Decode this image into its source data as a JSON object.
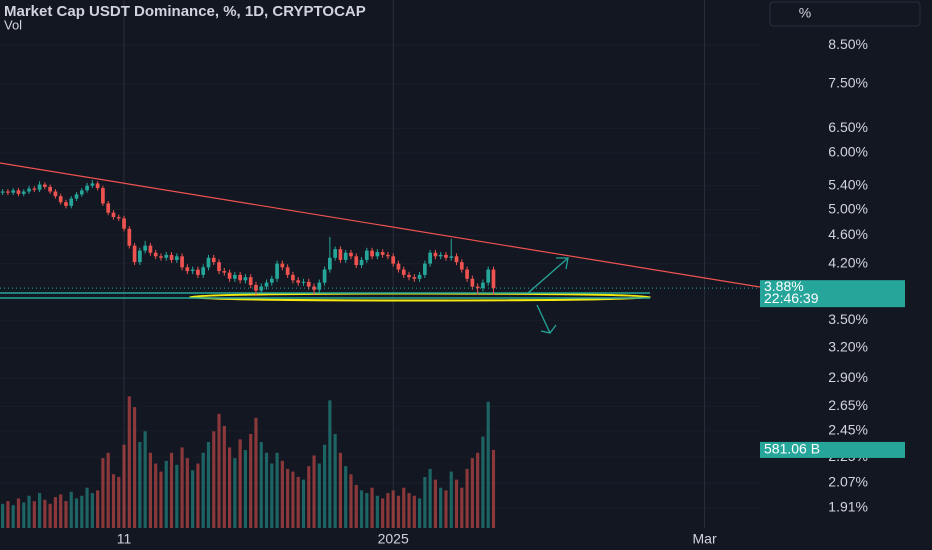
{
  "chart_data": {
    "type": "candlestick",
    "title": "Market Cap USDT Dominance, %, 1D, CRYPTOCAP",
    "volume_title": "Vol",
    "scale_button": "%",
    "log_scale": true,
    "grid": true,
    "up_color": "#26a69a",
    "down_color": "#ef5350",
    "xlim": [
      -0.5,
      143.5
    ],
    "xticks": [
      {
        "value": 23,
        "label": "11"
      },
      {
        "value": 74,
        "label": "2025"
      },
      {
        "value": 133,
        "label": "Mar"
      }
    ],
    "ylim": [
      1.79,
      9.83
    ],
    "yticks": [
      {
        "value": 8.5,
        "label": "8.50%"
      },
      {
        "value": 7.5,
        "label": "7.50%"
      },
      {
        "value": 6.5,
        "label": "6.50%"
      },
      {
        "value": 6.0,
        "label": "6.00%"
      },
      {
        "value": 5.4,
        "label": "5.40%"
      },
      {
        "value": 5.0,
        "label": "5.00%"
      },
      {
        "value": 4.6,
        "label": "4.60%"
      },
      {
        "value": 4.2,
        "label": "4.20%"
      },
      {
        "value": 3.5,
        "label": "3.50%"
      },
      {
        "value": 3.2,
        "label": "3.20%"
      },
      {
        "value": 2.9,
        "label": "2.90%"
      },
      {
        "value": 2.65,
        "label": "2.65%"
      },
      {
        "value": 2.45,
        "label": "2.45%"
      },
      {
        "value": 2.25,
        "label": "2.25%"
      },
      {
        "value": 2.07,
        "label": "2.07%"
      },
      {
        "value": 1.91,
        "label": "1.91%"
      }
    ],
    "y2lim": [
      0,
      3930
    ],
    "last_price_label": "3.88%",
    "countdown": "22:46:39",
    "volume_label": "581.06 B",
    "ohlc": [
      [
        5.28,
        5.34,
        5.24,
        5.3
      ],
      [
        5.3,
        5.34,
        5.24,
        5.28
      ],
      [
        5.28,
        5.36,
        5.24,
        5.32
      ],
      [
        5.32,
        5.36,
        5.22,
        5.26
      ],
      [
        5.26,
        5.34,
        5.22,
        5.3
      ],
      [
        5.3,
        5.4,
        5.26,
        5.35
      ],
      [
        5.35,
        5.39,
        5.29,
        5.33
      ],
      [
        5.33,
        5.48,
        5.29,
        5.42
      ],
      [
        5.42,
        5.46,
        5.34,
        5.38
      ],
      [
        5.38,
        5.42,
        5.26,
        5.3
      ],
      [
        5.3,
        5.34,
        5.18,
        5.22
      ],
      [
        5.22,
        5.26,
        5.08,
        5.12
      ],
      [
        5.12,
        5.16,
        5.02,
        5.06
      ],
      [
        5.06,
        5.22,
        5.02,
        5.18
      ],
      [
        5.18,
        5.29,
        5.14,
        5.25
      ],
      [
        5.25,
        5.36,
        5.21,
        5.32
      ],
      [
        5.32,
        5.45,
        5.28,
        5.4
      ],
      [
        5.4,
        5.5,
        5.36,
        5.44
      ],
      [
        5.44,
        5.48,
        5.32,
        5.36
      ],
      [
        5.36,
        5.4,
        5.06,
        5.1
      ],
      [
        5.1,
        5.14,
        4.91,
        4.95
      ],
      [
        4.95,
        4.99,
        4.84,
        4.88
      ],
      [
        4.88,
        4.92,
        4.82,
        4.86
      ],
      [
        4.86,
        4.9,
        4.66,
        4.7
      ],
      [
        4.7,
        4.74,
        4.41,
        4.45
      ],
      [
        4.45,
        4.49,
        4.18,
        4.22
      ],
      [
        4.22,
        4.42,
        4.18,
        4.38
      ],
      [
        4.38,
        4.52,
        4.34,
        4.45
      ],
      [
        4.45,
        4.49,
        4.31,
        4.35
      ],
      [
        4.35,
        4.39,
        4.26,
        4.3
      ],
      [
        4.3,
        4.34,
        4.24,
        4.28
      ],
      [
        4.28,
        4.36,
        4.24,
        4.32
      ],
      [
        4.32,
        4.36,
        4.21,
        4.25
      ],
      [
        4.25,
        4.34,
        4.21,
        4.3
      ],
      [
        4.3,
        4.34,
        4.11,
        4.15
      ],
      [
        4.15,
        4.19,
        4.06,
        4.1
      ],
      [
        4.1,
        4.16,
        4.06,
        4.12
      ],
      [
        4.12,
        4.16,
        4.01,
        4.05
      ],
      [
        4.05,
        4.19,
        4.01,
        4.15
      ],
      [
        4.15,
        4.32,
        4.11,
        4.28
      ],
      [
        4.28,
        4.32,
        4.18,
        4.22
      ],
      [
        4.22,
        4.26,
        4.06,
        4.1
      ],
      [
        4.1,
        4.14,
        4.04,
        4.08
      ],
      [
        4.08,
        4.12,
        3.96,
        4.0
      ],
      [
        4.0,
        4.09,
        3.96,
        4.05
      ],
      [
        4.05,
        4.09,
        3.94,
        3.98
      ],
      [
        3.98,
        4.06,
        3.94,
        4.02
      ],
      [
        4.02,
        4.06,
        3.88,
        3.92
      ],
      [
        3.92,
        3.96,
        3.78,
        3.85
      ],
      [
        3.85,
        3.94,
        3.81,
        3.9
      ],
      [
        3.9,
        3.99,
        3.86,
        3.95
      ],
      [
        3.95,
        4.04,
        3.91,
        4.0
      ],
      [
        4.0,
        4.24,
        3.96,
        4.2
      ],
      [
        4.2,
        4.24,
        4.11,
        4.15
      ],
      [
        4.15,
        4.19,
        4.01,
        4.05
      ],
      [
        4.05,
        4.09,
        3.94,
        3.98
      ],
      [
        3.98,
        4.02,
        3.91,
        3.95
      ],
      [
        3.95,
        4.0,
        3.91,
        3.96
      ],
      [
        3.96,
        4.0,
        3.86,
        3.9
      ],
      [
        3.9,
        3.94,
        3.8,
        3.86
      ],
      [
        3.86,
        3.99,
        3.82,
        3.95
      ],
      [
        3.95,
        4.16,
        3.91,
        4.12
      ],
      [
        4.12,
        4.58,
        4.08,
        4.28
      ],
      [
        4.28,
        4.44,
        4.24,
        4.4
      ],
      [
        4.4,
        4.44,
        4.21,
        4.25
      ],
      [
        4.25,
        4.39,
        4.21,
        4.35
      ],
      [
        4.35,
        4.39,
        4.26,
        4.3
      ],
      [
        4.3,
        4.34,
        4.14,
        4.18
      ],
      [
        4.18,
        4.29,
        4.14,
        4.25
      ],
      [
        4.25,
        4.42,
        4.21,
        4.38
      ],
      [
        4.38,
        4.42,
        4.26,
        4.3
      ],
      [
        4.3,
        4.4,
        4.26,
        4.36
      ],
      [
        4.36,
        4.4,
        4.28,
        4.32
      ],
      [
        4.32,
        4.36,
        4.26,
        4.3
      ],
      [
        4.3,
        4.34,
        4.16,
        4.2
      ],
      [
        4.2,
        4.24,
        4.08,
        4.12
      ],
      [
        4.12,
        4.16,
        4.01,
        4.05
      ],
      [
        4.05,
        4.09,
        3.98,
        4.02
      ],
      [
        4.02,
        4.06,
        3.96,
        4.0
      ],
      [
        4.0,
        4.09,
        3.96,
        4.05
      ],
      [
        4.05,
        4.24,
        4.01,
        4.2
      ],
      [
        4.2,
        4.39,
        4.16,
        4.35
      ],
      [
        4.35,
        4.39,
        4.26,
        4.3
      ],
      [
        4.3,
        4.36,
        4.26,
        4.32
      ],
      [
        4.32,
        4.36,
        4.24,
        4.28
      ],
      [
        4.28,
        4.55,
        4.24,
        4.3
      ],
      [
        4.3,
        4.34,
        4.18,
        4.22
      ],
      [
        4.22,
        4.26,
        4.08,
        4.12
      ],
      [
        4.12,
        4.16,
        3.96,
        4.0
      ],
      [
        4.0,
        4.04,
        3.86,
        3.9
      ],
      [
        3.9,
        3.94,
        3.8,
        3.88
      ],
      [
        3.88,
        3.99,
        3.84,
        3.95
      ],
      [
        3.95,
        4.16,
        3.91,
        4.12
      ],
      [
        4.12,
        4.16,
        3.8,
        3.88
      ]
    ],
    "volume": [
      180,
      200,
      170,
      220,
      190,
      240,
      200,
      260,
      210,
      180,
      230,
      250,
      200,
      270,
      220,
      240,
      300,
      260,
      280,
      520,
      560,
      400,
      380,
      620,
      980,
      900,
      640,
      720,
      560,
      480,
      420,
      500,
      560,
      470,
      600,
      520,
      430,
      480,
      560,
      640,
      720,
      850,
      760,
      600,
      520,
      660,
      580,
      700,
      820,
      640,
      560,
      480,
      560,
      500,
      440,
      420,
      380,
      360,
      460,
      540,
      480,
      620,
      950,
      700,
      560,
      460,
      400,
      320,
      280,
      260,
      300,
      240,
      220,
      260,
      280,
      240,
      300,
      260,
      240,
      220,
      380,
      440,
      360,
      300,
      280,
      420,
      360,
      300,
      440,
      520,
      560,
      680,
      940,
      581.06
    ]
  }
}
